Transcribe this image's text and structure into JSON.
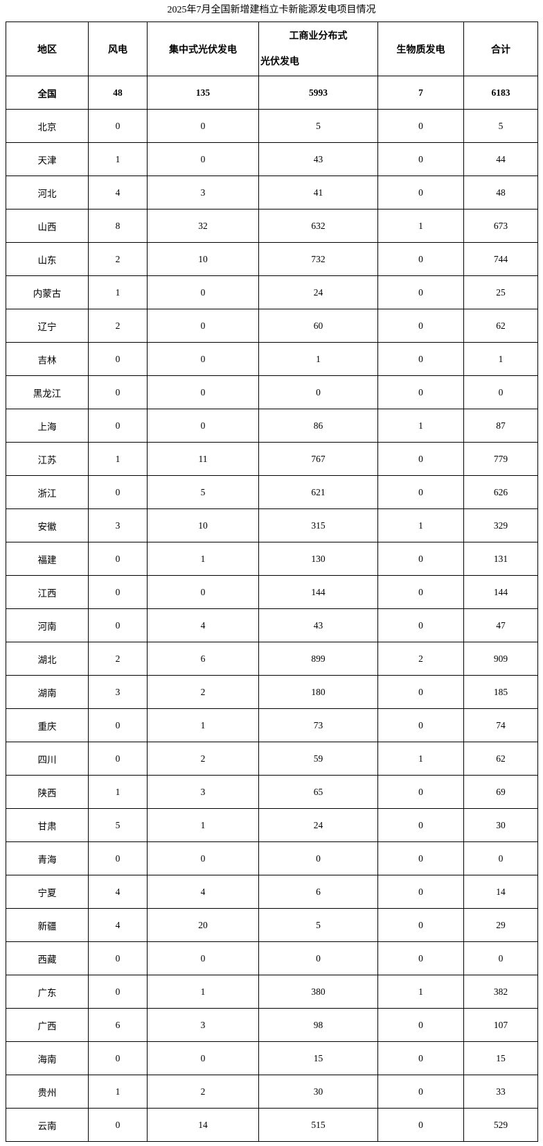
{
  "title": "2025年7月全国新增建档立卡新能源发电项目情况",
  "table": {
    "columns": {
      "region": "地区",
      "wind": "风电",
      "centralized_pv": "集中式光伏发电",
      "commercial_pv_line1": "工商业分布式",
      "commercial_pv_line2": "光伏发电",
      "biomass": "生物质发电",
      "total": "合计"
    },
    "rows": [
      [
        "全国",
        "48",
        "135",
        "5993",
        "7",
        "6183"
      ],
      [
        "北京",
        "0",
        "0",
        "5",
        "0",
        "5"
      ],
      [
        "天津",
        "1",
        "0",
        "43",
        "0",
        "44"
      ],
      [
        "河北",
        "4",
        "3",
        "41",
        "0",
        "48"
      ],
      [
        "山西",
        "8",
        "32",
        "632",
        "1",
        "673"
      ],
      [
        "山东",
        "2",
        "10",
        "732",
        "0",
        "744"
      ],
      [
        "内蒙古",
        "1",
        "0",
        "24",
        "0",
        "25"
      ],
      [
        "辽宁",
        "2",
        "0",
        "60",
        "0",
        "62"
      ],
      [
        "吉林",
        "0",
        "0",
        "1",
        "0",
        "1"
      ],
      [
        "黑龙江",
        "0",
        "0",
        "0",
        "0",
        "0"
      ],
      [
        "上海",
        "0",
        "0",
        "86",
        "1",
        "87"
      ],
      [
        "江苏",
        "1",
        "11",
        "767",
        "0",
        "779"
      ],
      [
        "浙江",
        "0",
        "5",
        "621",
        "0",
        "626"
      ],
      [
        "安徽",
        "3",
        "10",
        "315",
        "1",
        "329"
      ],
      [
        "福建",
        "0",
        "1",
        "130",
        "0",
        "131"
      ],
      [
        "江西",
        "0",
        "0",
        "144",
        "0",
        "144"
      ],
      [
        "河南",
        "0",
        "4",
        "43",
        "0",
        "47"
      ],
      [
        "湖北",
        "2",
        "6",
        "899",
        "2",
        "909"
      ],
      [
        "湖南",
        "3",
        "2",
        "180",
        "0",
        "185"
      ],
      [
        "重庆",
        "0",
        "1",
        "73",
        "0",
        "74"
      ],
      [
        "四川",
        "0",
        "2",
        "59",
        "1",
        "62"
      ],
      [
        "陕西",
        "1",
        "3",
        "65",
        "0",
        "69"
      ],
      [
        "甘肃",
        "5",
        "1",
        "24",
        "0",
        "30"
      ],
      [
        "青海",
        "0",
        "0",
        "0",
        "0",
        "0"
      ],
      [
        "宁夏",
        "4",
        "4",
        "6",
        "0",
        "14"
      ],
      [
        "新疆",
        "4",
        "20",
        "5",
        "0",
        "29"
      ],
      [
        "西藏",
        "0",
        "0",
        "0",
        "0",
        "0"
      ],
      [
        "广东",
        "0",
        "1",
        "380",
        "1",
        "382"
      ],
      [
        "广西",
        "6",
        "3",
        "98",
        "0",
        "107"
      ],
      [
        "海南",
        "0",
        "0",
        "15",
        "0",
        "15"
      ],
      [
        "贵州",
        "1",
        "2",
        "30",
        "0",
        "33"
      ],
      [
        "云南",
        "0",
        "14",
        "515",
        "0",
        "529"
      ]
    ],
    "colors": {
      "border": "#000000",
      "text": "#000000",
      "background": "#ffffff"
    }
  }
}
